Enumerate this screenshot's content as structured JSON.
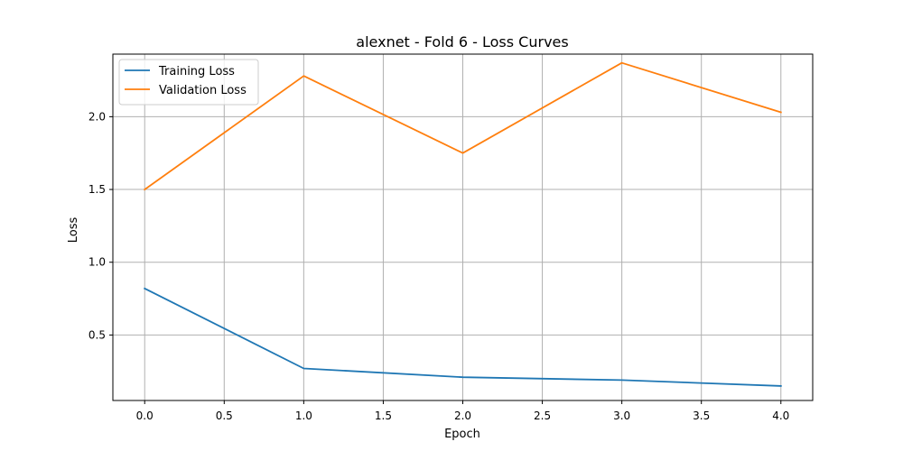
{
  "chart_data": {
    "type": "line",
    "title": "alexnet - Fold 6 - Loss Curves",
    "xlabel": "Epoch",
    "ylabel": "Loss",
    "xlim": [
      -0.2,
      4.2
    ],
    "ylim": [
      0.05,
      2.43
    ],
    "x": [
      0,
      1,
      2,
      3,
      4
    ],
    "xticks": [
      0.0,
      0.5,
      1.0,
      1.5,
      2.0,
      2.5,
      3.0,
      3.5,
      4.0
    ],
    "xtick_labels": [
      "0.0",
      "0.5",
      "1.0",
      "1.5",
      "2.0",
      "2.5",
      "3.0",
      "3.5",
      "4.0"
    ],
    "yticks": [
      0.5,
      1.0,
      1.5,
      2.0
    ],
    "ytick_labels": [
      "0.5",
      "1.0",
      "1.5",
      "2.0"
    ],
    "grid": true,
    "legend_position": "top-left",
    "series": [
      {
        "name": "Training Loss",
        "color": "#1f77b4",
        "values": [
          0.82,
          0.27,
          0.21,
          0.19,
          0.15
        ]
      },
      {
        "name": "Validation Loss",
        "color": "#ff7f0e",
        "values": [
          1.5,
          2.28,
          1.75,
          2.37,
          2.03
        ]
      }
    ]
  }
}
